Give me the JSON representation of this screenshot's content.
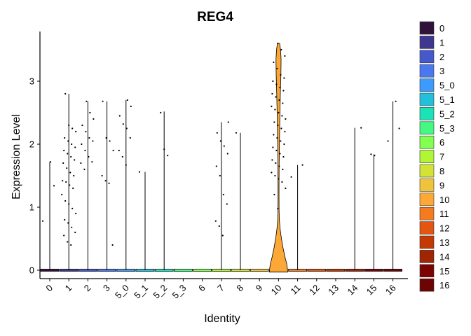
{
  "chart_data": {
    "type": "violin",
    "title": "REG4",
    "xlabel": "Identity",
    "ylabel": "Expression Level",
    "ylim": [
      -0.15,
      3.8
    ],
    "yticks": [
      0,
      1,
      2,
      3
    ],
    "categories": [
      "0",
      "1",
      "2",
      "3",
      "5_0",
      "5_1",
      "5_2",
      "5_3",
      "6",
      "7",
      "8",
      "9",
      "10",
      "11",
      "12",
      "13",
      "14",
      "15",
      "16"
    ],
    "colors": [
      "#30123B",
      "#3E378F",
      "#4559CB",
      "#4A78EF",
      "#3E9BFE",
      "#23C0DE",
      "#1BE2B7",
      "#45F884",
      "#82FF51",
      "#B0F636",
      "#D4E235",
      "#F0C43A",
      "#FCA836",
      "#F47B1E",
      "#E35510",
      "#C43904",
      "#A02502",
      "#7A0403",
      "#6B0402"
    ],
    "legend": [
      "0",
      "1",
      "2",
      "3",
      "5_0",
      "5_1",
      "5_2",
      "5_3",
      "6",
      "7",
      "8",
      "9",
      "10",
      "11",
      "12",
      "13",
      "14",
      "15",
      "16"
    ],
    "legend_position": "right",
    "grid": false,
    "violin_max": [
      1.72,
      2.8,
      2.68,
      2.68,
      2.7,
      1.56,
      2.52,
      0,
      0,
      2.35,
      2.18,
      0,
      3.6,
      1.67,
      0,
      0,
      2.26,
      1.84,
      2.68
    ],
    "points": [
      [
        0.78,
        1.34,
        1.72
      ],
      [
        0.4,
        0.45,
        0.55,
        0.6,
        0.68,
        0.75,
        0.8,
        0.9,
        0.98,
        1.05,
        1.1,
        1.2,
        1.3,
        1.35,
        1.4,
        1.42,
        1.5,
        1.55,
        1.62,
        1.7,
        1.75,
        1.8,
        1.85,
        1.9,
        1.95,
        2.0,
        2.05,
        2.1,
        2.2,
        2.25,
        2.3,
        2.8
      ],
      [
        1.6,
        1.7,
        1.72,
        1.8,
        1.9,
        2.0,
        2.05,
        2.1,
        2.2,
        2.3,
        2.4,
        2.5,
        2.68
      ],
      [
        0.4,
        1.38,
        1.42,
        1.5,
        1.9,
        2.05,
        2.1,
        2.68
      ],
      [
        1.67,
        1.8,
        1.9,
        2.1,
        2.25,
        2.32,
        2.45,
        2.6,
        2.7
      ],
      [
        1.56
      ],
      [
        1.82,
        1.92,
        2.5
      ],
      [],
      [],
      [
        0.55,
        0.7,
        0.78,
        1.05,
        1.2,
        1.5,
        1.65,
        1.85,
        1.97,
        2.05,
        2.18,
        2.35
      ],
      [
        2.18
      ],
      [],
      [
        0.98,
        1.2,
        1.3,
        1.4,
        1.45,
        1.5,
        1.55,
        1.6,
        1.65,
        1.7,
        1.75,
        1.8,
        1.85,
        1.9,
        1.95,
        2.0,
        2.05,
        2.1,
        2.15,
        2.2,
        2.25,
        2.3,
        2.35,
        2.4,
        2.45,
        2.5,
        2.55,
        2.6,
        2.65,
        2.7,
        2.75,
        2.8,
        2.85,
        2.9,
        2.95,
        3.0,
        3.05,
        3.1,
        3.2,
        3.3,
        3.4,
        3.5,
        3.6
      ],
      [
        1.48,
        1.67
      ],
      [],
      [],
      [
        2.26
      ],
      [
        1.82,
        1.84
      ],
      [
        2.05,
        2.25,
        2.68
      ]
    ]
  }
}
